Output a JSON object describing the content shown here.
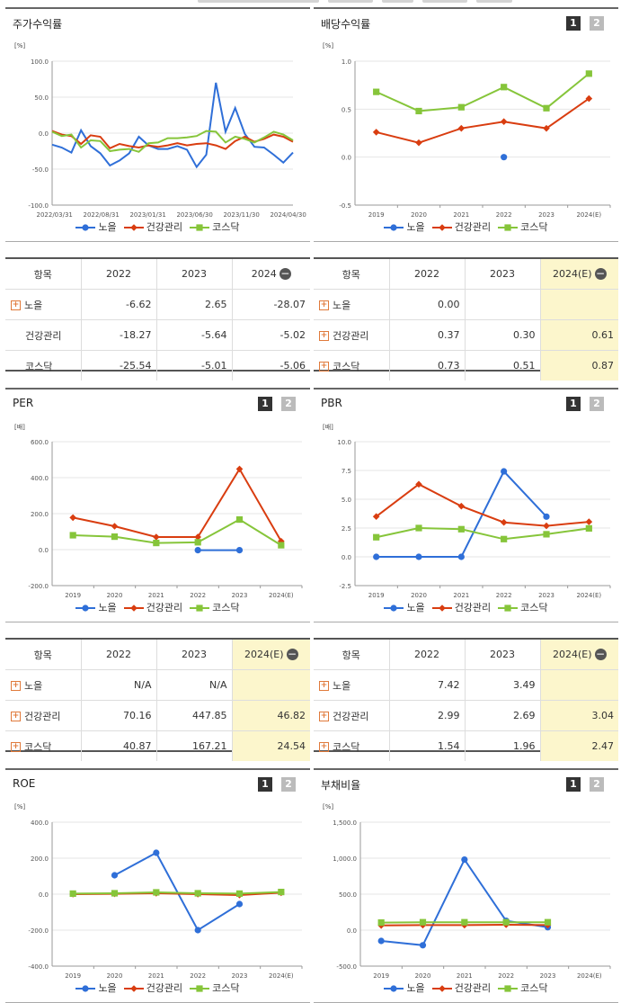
{
  "colors": {
    "nole": "#2f6fd8",
    "health": "#d93d10",
    "kosdaq": "#86c53a",
    "grid": "#e6e6e6",
    "axis": "#999"
  },
  "legend": [
    "노을",
    "건강관리",
    "코스닥"
  ],
  "btn": {
    "one": "1",
    "two": "2"
  },
  "panels": {
    "stock": {
      "title": "주가수익률",
      "unit": "[%]"
    },
    "div": {
      "title": "배당수익률",
      "unit": "[%]"
    },
    "per": {
      "title": "PER",
      "unit": "[배]"
    },
    "pbr": {
      "title": "PBR",
      "unit": "[배]"
    },
    "roe": {
      "title": "ROE",
      "unit": "[%]"
    },
    "debt": {
      "title": "부채비율",
      "unit": "[%]"
    }
  },
  "chart_data": [
    {
      "type": "line",
      "title": "주가수익률",
      "ylim": [
        -100,
        100
      ],
      "yticks": [
        "100.0",
        "50.0",
        "0.0",
        "-50.0",
        "-100.0"
      ],
      "xticks": [
        "2022/03/31",
        "2022/08/31",
        "2023/01/31",
        "2023/06/30",
        "2023/11/30",
        "2024/04/30"
      ],
      "series": [
        {
          "name": "노을",
          "values": [
            -16,
            -20,
            -27,
            4,
            -18,
            -28,
            -45,
            -38,
            -28,
            -5,
            -17,
            -22,
            -22,
            -18,
            -23,
            -47,
            -30,
            70,
            2,
            35,
            -1,
            -19,
            -20,
            -30,
            -41,
            -27
          ]
        },
        {
          "name": "건강관리",
          "values": [
            3,
            -2,
            -4,
            -15,
            -3,
            -5,
            -21,
            -15,
            -18,
            -20,
            -17,
            -19,
            -17,
            -14,
            -17,
            -15,
            -14,
            -17,
            -22,
            -11,
            -5,
            -12,
            -8,
            -2,
            -5,
            -12
          ]
        },
        {
          "name": "코스닥",
          "values": [
            2,
            -4,
            -2,
            -20,
            -10,
            -11,
            -25,
            -23,
            -22,
            -26,
            -14,
            -13,
            -7,
            -7,
            -6,
            -4,
            3,
            2,
            -13,
            -5,
            -8,
            -13,
            -6,
            2,
            -2,
            -10
          ]
        }
      ]
    },
    {
      "type": "line",
      "title": "배당수익률",
      "ylim": [
        -0.5,
        1.0
      ],
      "yticks": [
        "1.0",
        "0.5",
        "0.0",
        "-0.5"
      ],
      "categories": [
        "2019",
        "2020",
        "2021",
        "2022",
        "2023",
        "2024(E)"
      ],
      "series": [
        {
          "name": "노을",
          "values": [
            null,
            null,
            null,
            0.0,
            null,
            null
          ]
        },
        {
          "name": "건강관리",
          "values": [
            0.26,
            0.15,
            0.3,
            0.37,
            0.3,
            0.61
          ]
        },
        {
          "name": "코스닥",
          "values": [
            0.68,
            0.48,
            0.52,
            0.73,
            0.51,
            0.87
          ]
        }
      ]
    },
    {
      "type": "line",
      "title": "PER",
      "ylim": [
        -200,
        600
      ],
      "yticks": [
        "600.0",
        "400.0",
        "200.0",
        "0.0",
        "-200.0"
      ],
      "categories": [
        "2019",
        "2020",
        "2021",
        "2022",
        "2023",
        "2024(E)"
      ],
      "series": [
        {
          "name": "노을",
          "values": [
            null,
            null,
            null,
            -3,
            -3,
            null
          ]
        },
        {
          "name": "건강관리",
          "values": [
            178,
            130,
            70,
            70.16,
            447.85,
            46.82
          ]
        },
        {
          "name": "코스닥",
          "values": [
            80,
            72,
            37,
            40.87,
            167.21,
            24.54
          ]
        }
      ]
    },
    {
      "type": "line",
      "title": "PBR",
      "ylim": [
        -2.5,
        10.0
      ],
      "yticks": [
        "10.0",
        "7.5",
        "5.0",
        "2.5",
        "0.0",
        "-2.5"
      ],
      "categories": [
        "2019",
        "2020",
        "2021",
        "2022",
        "2023",
        "2024(E)"
      ],
      "series": [
        {
          "name": "노을",
          "values": [
            0.0,
            0.0,
            0.0,
            7.42,
            3.49,
            null
          ]
        },
        {
          "name": "건강관리",
          "values": [
            3.5,
            6.3,
            4.4,
            2.99,
            2.69,
            3.04
          ]
        },
        {
          "name": "코스닥",
          "values": [
            1.7,
            2.5,
            2.4,
            1.54,
            1.96,
            2.47
          ]
        }
      ]
    },
    {
      "type": "line",
      "title": "ROE",
      "ylim": [
        -400,
        400
      ],
      "yticks": [
        "400.0",
        "200.0",
        "0.0",
        "-200.0",
        "-400.0"
      ],
      "categories": [
        "2019",
        "2020",
        "2021",
        "2022",
        "2023",
        "2024(E)"
      ],
      "series": [
        {
          "name": "노을",
          "values": [
            null,
            105,
            230,
            -200,
            -55,
            null
          ]
        },
        {
          "name": "건강관리",
          "values": [
            0,
            2,
            5,
            0,
            -5,
            8
          ]
        },
        {
          "name": "코스닥",
          "values": [
            3,
            5,
            10,
            5,
            3,
            12
          ]
        }
      ]
    },
    {
      "type": "line",
      "title": "부채비율",
      "ylim": [
        -500,
        1500
      ],
      "yticks": [
        "1,500.0",
        "1,000.0",
        "500.0",
        "0.0",
        "-500.0"
      ],
      "categories": [
        "2019",
        "2020",
        "2021",
        "2022",
        "2023",
        "2024(E)"
      ],
      "series": [
        {
          "name": "노을",
          "values": [
            -150,
            -210,
            980,
            130,
            40,
            null
          ]
        },
        {
          "name": "건강관리",
          "values": [
            65,
            70,
            70,
            75,
            70,
            null
          ]
        },
        {
          "name": "코스닥",
          "values": [
            105,
            110,
            110,
            110,
            110,
            null
          ]
        }
      ]
    }
  ],
  "tables": {
    "stock": {
      "headers": [
        "항목",
        "2022",
        "2023",
        "2024"
      ],
      "rows": [
        {
          "label": "노을",
          "plus": true,
          "v": [
            "-6.62",
            "2.65",
            "-28.07"
          ]
        },
        {
          "label": "건강관리",
          "plus": false,
          "v": [
            "-18.27",
            "-5.64",
            "-5.02"
          ]
        },
        {
          "label": "코스닥",
          "plus": false,
          "v": [
            "-25.54",
            "-5.01",
            "-5.06"
          ]
        }
      ]
    },
    "div": {
      "headers": [
        "항목",
        "2022",
        "2023",
        "2024(E)"
      ],
      "rows": [
        {
          "label": "노을",
          "plus": true,
          "v": [
            "0.00",
            "",
            ""
          ]
        },
        {
          "label": "건강관리",
          "plus": true,
          "v": [
            "0.37",
            "0.30",
            "0.61"
          ]
        },
        {
          "label": "코스닥",
          "plus": true,
          "v": [
            "0.73",
            "0.51",
            "0.87"
          ]
        }
      ]
    },
    "per": {
      "headers": [
        "항목",
        "2022",
        "2023",
        "2024(E)"
      ],
      "rows": [
        {
          "label": "노을",
          "plus": true,
          "v": [
            "N/A",
            "N/A",
            ""
          ]
        },
        {
          "label": "건강관리",
          "plus": true,
          "v": [
            "70.16",
            "447.85",
            "46.82"
          ]
        },
        {
          "label": "코스닥",
          "plus": true,
          "v": [
            "40.87",
            "167.21",
            "24.54"
          ]
        }
      ]
    },
    "pbr": {
      "headers": [
        "항목",
        "2022",
        "2023",
        "2024(E)"
      ],
      "rows": [
        {
          "label": "노을",
          "plus": true,
          "v": [
            "7.42",
            "3.49",
            ""
          ]
        },
        {
          "label": "건강관리",
          "plus": true,
          "v": [
            "2.99",
            "2.69",
            "3.04"
          ]
        },
        {
          "label": "코스닥",
          "plus": true,
          "v": [
            "1.54",
            "1.96",
            "2.47"
          ]
        }
      ]
    }
  }
}
